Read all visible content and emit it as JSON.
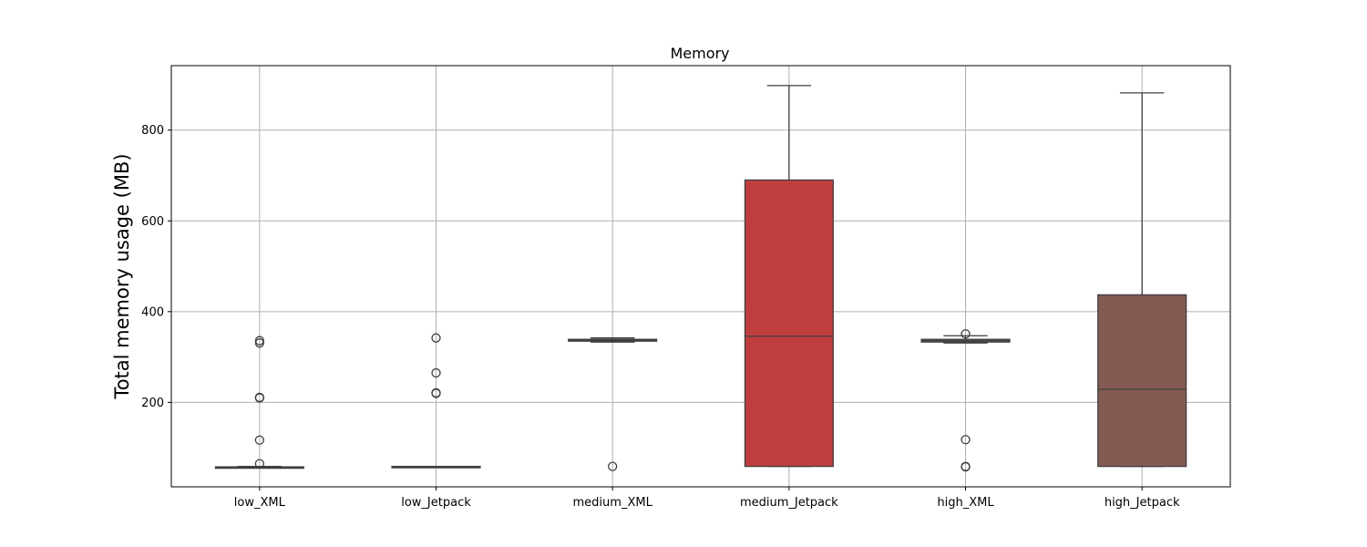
{
  "chart_data": {
    "type": "box",
    "title": "Memory",
    "xlabel": "",
    "ylabel": "Total memory usage (MB)",
    "ylim": [
      14,
      942
    ],
    "y_ticks": [
      200,
      400,
      600,
      800
    ],
    "grid": true,
    "legend": "none",
    "categories": [
      "low_XML",
      "low_Jetpack",
      "medium_XML",
      "medium_Jetpack",
      "high_XML",
      "high_Jetpack"
    ],
    "boxes": [
      {
        "category": "low_XML",
        "color": "#4a72b0",
        "whisker_low": 56,
        "q1": 56,
        "median": 57,
        "q3": 58,
        "whisker_high": 59,
        "outliers": [
          336,
          331,
          211,
          210,
          117,
          65
        ]
      },
      {
        "category": "low_Jetpack",
        "color": "#e08a3c",
        "whisker_low": 58,
        "q1": 58,
        "median": 58,
        "q3": 59,
        "whisker_high": 59,
        "outliers": [
          342,
          265,
          221,
          220
        ]
      },
      {
        "category": "medium_XML",
        "color": "#3a923a",
        "whisker_low": 333,
        "q1": 335,
        "median": 337,
        "q3": 339,
        "whisker_high": 342,
        "outliers": [
          59
        ]
      },
      {
        "category": "medium_Jetpack",
        "color": "#c03d3e",
        "whisker_low": 59,
        "q1": 59,
        "median": 346,
        "q3": 690,
        "whisker_high": 898,
        "outliers": []
      },
      {
        "category": "high_XML",
        "color": "#9372b2",
        "whisker_low": 331,
        "q1": 333,
        "median": 336,
        "q3": 339,
        "whisker_high": 347,
        "outliers": [
          351,
          118,
          59,
          58
        ]
      },
      {
        "category": "high_Jetpack",
        "color": "#845b53",
        "whisker_low": 59,
        "q1": 59,
        "median": 229,
        "q3": 437,
        "whisker_high": 882,
        "outliers": []
      }
    ]
  }
}
